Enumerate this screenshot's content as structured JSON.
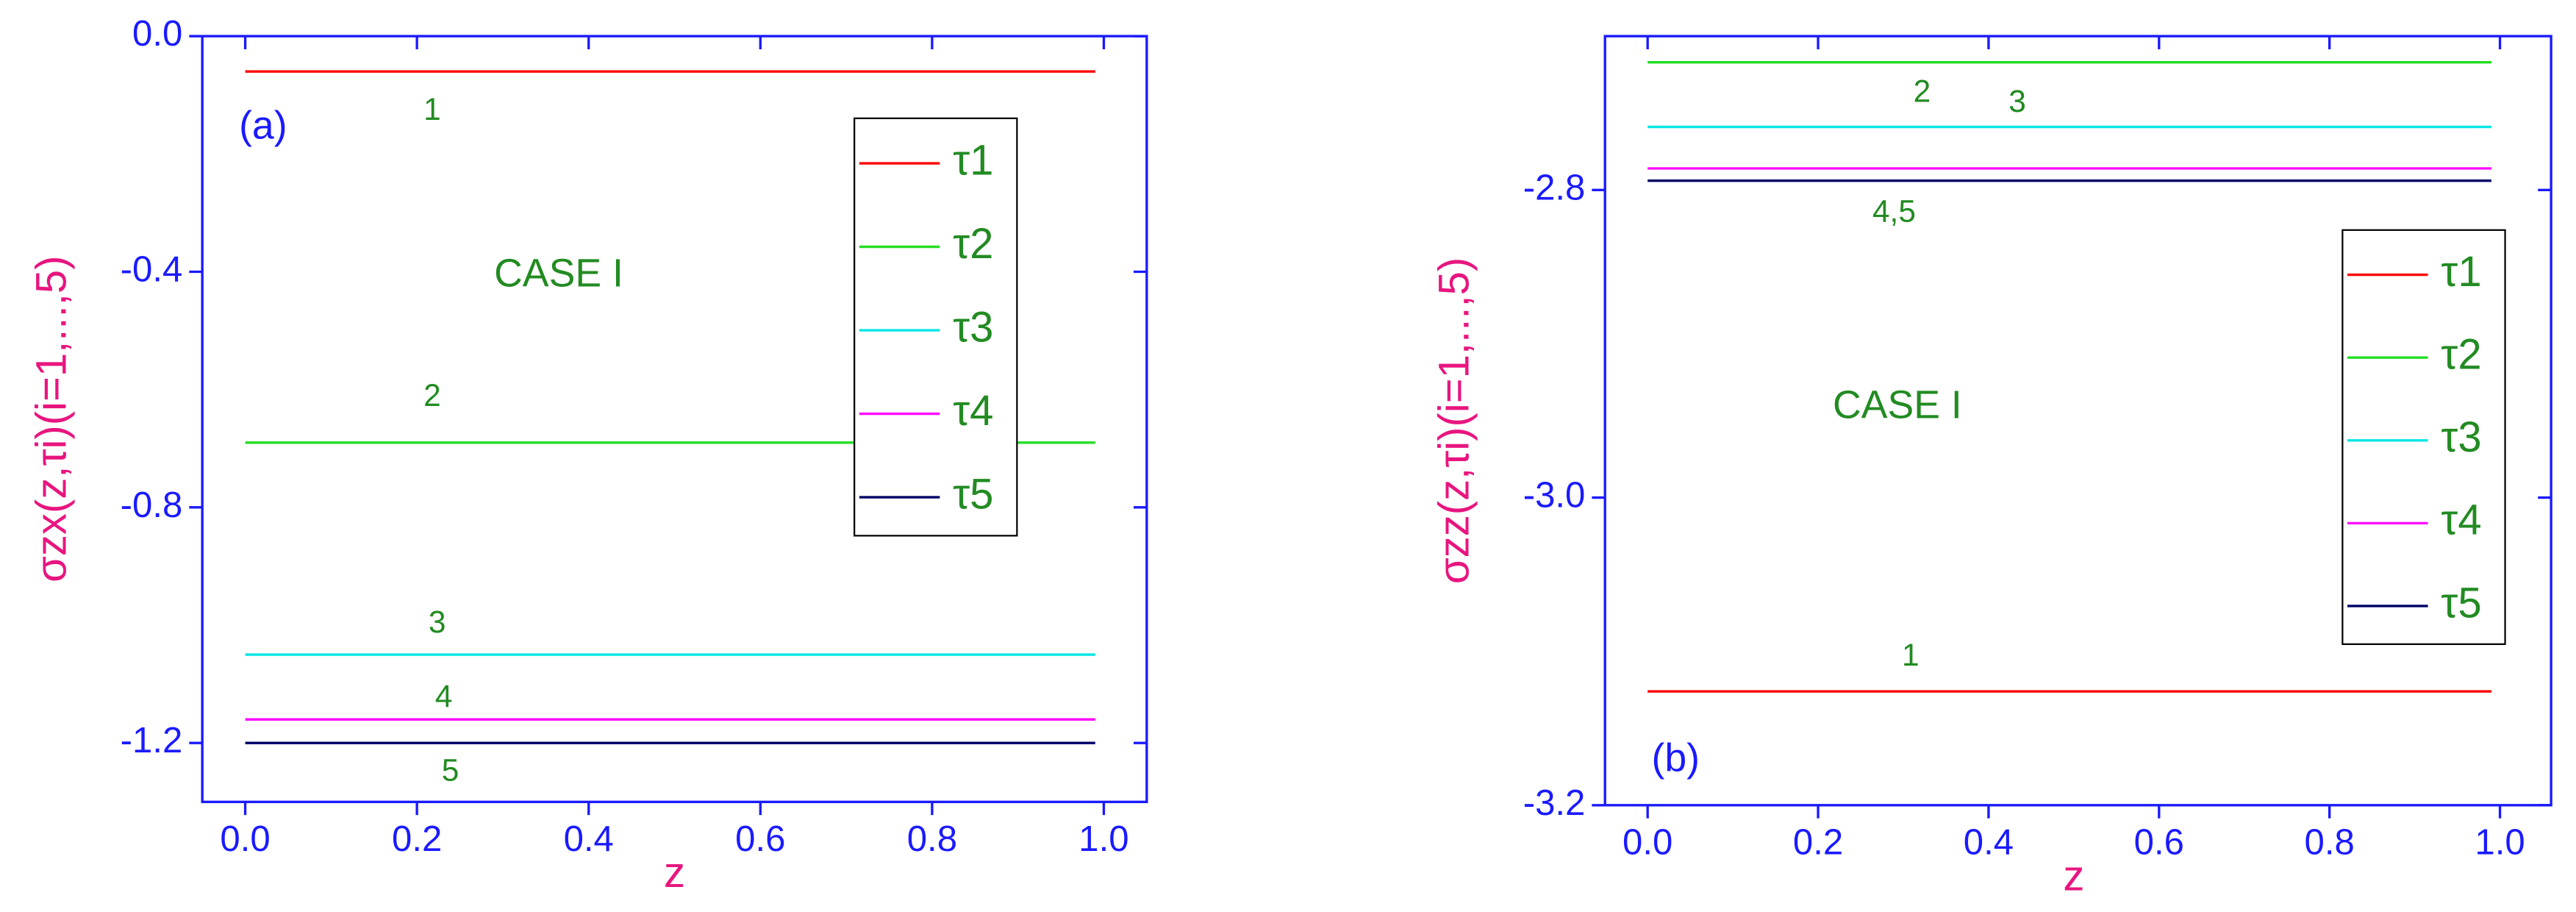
{
  "chart_data": [
    {
      "type": "line",
      "y_label": "σzx(z,τi)(i=1,...,5)",
      "x_label": "z",
      "annotations": [
        "(a)",
        "CASE I",
        "1",
        "2",
        "3",
        "4",
        "5"
      ],
      "x": [
        0,
        0.99
      ],
      "xlim": [
        -0.05,
        1.05
      ],
      "xticks": [
        {
          "value": 0,
          "label": "0.0"
        },
        0.2,
        0.4,
        0.6,
        0.8,
        {
          "value": 1,
          "label": "1.0"
        }
      ],
      "ylim": [
        -1.3,
        0
      ],
      "yticks": [
        {
          "value": 0,
          "label": "0.0"
        },
        -0.4,
        -0.8,
        -1.2
      ],
      "grid": false,
      "legend": "upper right",
      "series": [
        {
          "name": "τ1",
          "color": "#ff0000",
          "values": [
            -0.06,
            -0.06
          ]
        },
        {
          "name": "τ2",
          "color": "#22dd22",
          "values": [
            -0.69,
            -0.69
          ]
        },
        {
          "name": "τ3",
          "color": "#00e5e5",
          "values": [
            -1.05,
            -1.05
          ]
        },
        {
          "name": "τ4",
          "color": "#ff00ff",
          "values": [
            -1.16,
            -1.16
          ]
        },
        {
          "name": "τ5",
          "color": "#000066",
          "values": [
            -1.2,
            -1.2
          ]
        }
      ]
    },
    {
      "type": "line",
      "y_label": "σzz(z,τi)(i=1,...,5)",
      "x_label": "z",
      "annotations": [
        "(b)",
        "CASE I",
        "1",
        "2",
        "3",
        "4,5"
      ],
      "x": [
        0,
        0.99
      ],
      "xlim": [
        -0.05,
        1.06
      ],
      "xticks": [
        {
          "value": 0,
          "label": "0.0"
        },
        0.2,
        0.4,
        0.6,
        0.8,
        {
          "value": 1,
          "label": "1.0"
        }
      ],
      "ylim": [
        -3.2,
        -2.7
      ],
      "yticks": [
        -2.8,
        {
          "value": -3,
          "label": "-3.0"
        },
        -3.2
      ],
      "grid": false,
      "legend": "right",
      "series": [
        {
          "name": "τ1",
          "color": "#ff0000",
          "values": [
            -3.126,
            -3.126
          ]
        },
        {
          "name": "τ2",
          "color": "#22dd22",
          "values": [
            -2.717,
            -2.717
          ]
        },
        {
          "name": "τ3",
          "color": "#00e5e5",
          "values": [
            -2.759,
            -2.759
          ]
        },
        {
          "name": "τ4",
          "color": "#ff00ff",
          "values": [
            -2.786,
            -2.786
          ]
        },
        {
          "name": "τ5",
          "color": "#000066",
          "values": [
            -2.794,
            -2.794
          ]
        }
      ]
    }
  ]
}
